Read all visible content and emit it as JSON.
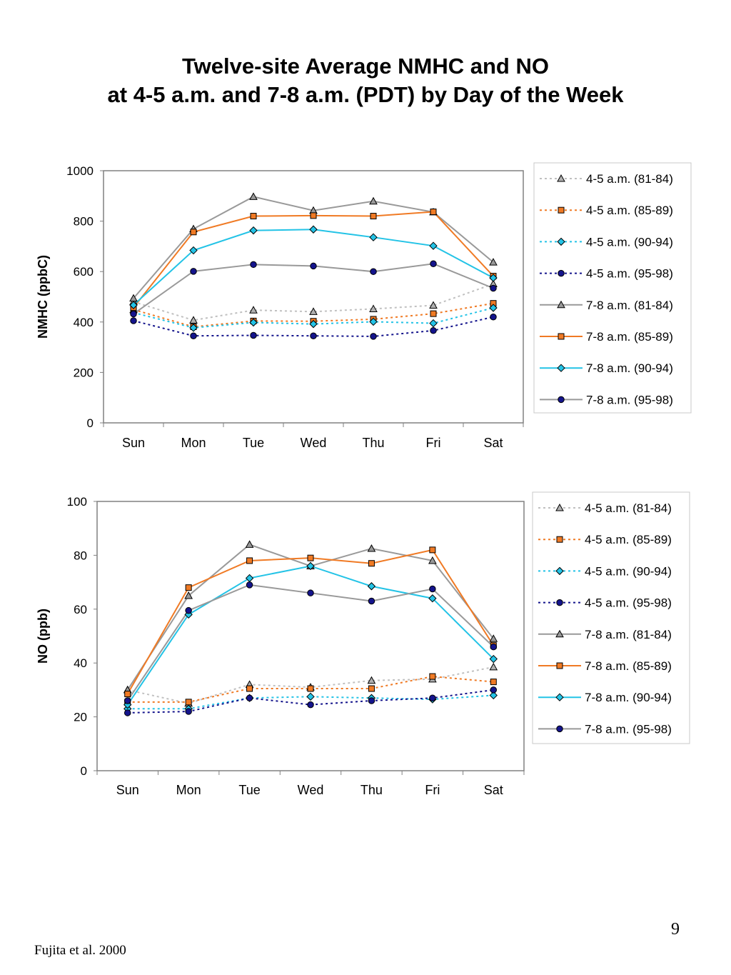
{
  "page": {
    "title_line1": "Twelve-site Average NMHC and NO",
    "title_line2": "at 4-5 a.m. and 7-8 a.m. (PDT) by Day of the Week",
    "page_number": "9",
    "source": "Fujita et al. 2000"
  },
  "chart_data": [
    {
      "type": "line",
      "ylabel": "NMHC (ppbC)",
      "xlabel": "",
      "ylim": [
        0,
        1000
      ],
      "yticks": [
        0,
        200,
        400,
        600,
        800,
        1000
      ],
      "categories": [
        "Sun",
        "Mon",
        "Tue",
        "Wed",
        "Thu",
        "Fri",
        "Sat"
      ],
      "legend_position": "right",
      "series": [
        {
          "name": "4-5 a.m. (81-84)",
          "style": "dotted",
          "color": "#c0c0c0",
          "marker": "triangle",
          "marker_fill": "#b0b0b0",
          "values": [
            480,
            407,
            447,
            441,
            452,
            466,
            551
          ]
        },
        {
          "name": "4-5 a.m. (85-89)",
          "style": "dotted",
          "color": "#f07a24",
          "marker": "square",
          "marker_fill": "#f07a24",
          "values": [
            449,
            381,
            404,
            403,
            411,
            433,
            474
          ]
        },
        {
          "name": "4-5 a.m. (90-94)",
          "style": "dotted",
          "color": "#23c3e6",
          "marker": "diamond",
          "marker_fill": "#23c3e6",
          "values": [
            437,
            377,
            398,
            392,
            401,
            395,
            456
          ]
        },
        {
          "name": "4-5 a.m. (95-98)",
          "style": "dotted",
          "color": "#14148c",
          "marker": "circle",
          "marker_fill": "#14148c",
          "values": [
            405,
            345,
            347,
            345,
            343,
            366,
            420
          ]
        },
        {
          "name": "7-8 a.m. (81-84)",
          "style": "solid",
          "color": "#999999",
          "marker": "triangle",
          "marker_fill": "#999999",
          "values": [
            494,
            769,
            897,
            842,
            879,
            836,
            637
          ]
        },
        {
          "name": "7-8 a.m. (85-89)",
          "style": "solid",
          "color": "#f07a24",
          "marker": "square",
          "marker_fill": "#f07a24",
          "values": [
            457,
            757,
            820,
            822,
            820,
            837,
            582
          ]
        },
        {
          "name": "7-8 a.m. (90-94)",
          "style": "solid",
          "color": "#23c3e6",
          "marker": "diamond",
          "marker_fill": "#23c3e6",
          "values": [
            467,
            684,
            763,
            767,
            736,
            702,
            575
          ]
        },
        {
          "name": "7-8 a.m. (95-98)",
          "style": "solid",
          "color": "#999999",
          "marker": "circle",
          "marker_fill": "#14148c",
          "values": [
            432,
            601,
            628,
            622,
            600,
            631,
            534
          ]
        }
      ]
    },
    {
      "type": "line",
      "ylabel": "NO (ppb)",
      "xlabel": "",
      "ylim": [
        0,
        100
      ],
      "yticks": [
        0,
        20,
        40,
        60,
        80,
        100
      ],
      "categories": [
        "Sun",
        "Mon",
        "Tue",
        "Wed",
        "Thu",
        "Fri",
        "Sat"
      ],
      "legend_position": "right",
      "series": [
        {
          "name": "4-5 a.m. (81-84)",
          "style": "dotted",
          "color": "#c0c0c0",
          "marker": "triangle",
          "marker_fill": "#b0b0b0",
          "values": [
            30,
            25,
            32,
            31,
            33.5,
            34,
            38.5
          ]
        },
        {
          "name": "4-5 a.m. (85-89)",
          "style": "dotted",
          "color": "#f07a24",
          "marker": "square",
          "marker_fill": "#f07a24",
          "values": [
            25.5,
            25.5,
            30.5,
            30.5,
            30.5,
            35,
            33
          ]
        },
        {
          "name": "4-5 a.m. (90-94)",
          "style": "dotted",
          "color": "#23c3e6",
          "marker": "diamond",
          "marker_fill": "#23c3e6",
          "values": [
            23,
            23,
            27,
            27.5,
            27,
            26.5,
            28
          ]
        },
        {
          "name": "4-5 a.m. (95-98)",
          "style": "dotted",
          "color": "#14148c",
          "marker": "circle",
          "marker_fill": "#14148c",
          "values": [
            21.5,
            22,
            27,
            24.5,
            26,
            27,
            30
          ]
        },
        {
          "name": "7-8 a.m. (81-84)",
          "style": "solid",
          "color": "#999999",
          "marker": "triangle",
          "marker_fill": "#999999",
          "values": [
            30,
            65,
            84,
            76,
            82.5,
            78,
            49
          ]
        },
        {
          "name": "7-8 a.m. (85-89)",
          "style": "solid",
          "color": "#f07a24",
          "marker": "square",
          "marker_fill": "#f07a24",
          "values": [
            28.5,
            68,
            78,
            79,
            77,
            82,
            46.5
          ]
        },
        {
          "name": "7-8 a.m. (90-94)",
          "style": "solid",
          "color": "#23c3e6",
          "marker": "diamond",
          "marker_fill": "#23c3e6",
          "values": [
            24.5,
            58,
            71.5,
            76,
            68.5,
            64,
            41.5
          ]
        },
        {
          "name": "7-8 a.m. (95-98)",
          "style": "solid",
          "color": "#999999",
          "marker": "circle",
          "marker_fill": "#14148c",
          "values": [
            26,
            59.5,
            69,
            66,
            63,
            67.5,
            46
          ]
        }
      ]
    }
  ]
}
